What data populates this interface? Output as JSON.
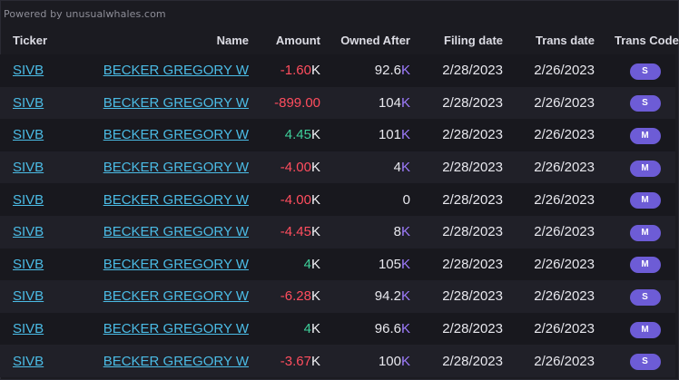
{
  "powered_by": "Powered by unusualwhales.com",
  "columns": {
    "ticker": "Ticker",
    "name": "Name",
    "amount": "Amount",
    "owned_after": "Owned After",
    "filing_date": "Filing date",
    "trans_date": "Trans date",
    "trans_code": "Trans Code"
  },
  "colors": {
    "link": "#4bbce6",
    "negative": "#ff4d5e",
    "positive": "#3ecf9a",
    "owned_suffix": "#9f7cff",
    "badge": "#6d5cd6",
    "background": "#1b1b21"
  },
  "rows": [
    {
      "ticker": "SIVB",
      "name": "BECKER GREGORY W",
      "amount": "-1.60",
      "amount_suffix": "K",
      "amount_sign": "neg",
      "owned": "92.6",
      "owned_suffix": "K",
      "filing": "2/28/2023",
      "trans": "2/26/2023",
      "code": "S"
    },
    {
      "ticker": "SIVB",
      "name": "BECKER GREGORY W",
      "amount": "-899.00",
      "amount_suffix": "",
      "amount_sign": "neg",
      "owned": "104",
      "owned_suffix": "K",
      "filing": "2/28/2023",
      "trans": "2/26/2023",
      "code": "S"
    },
    {
      "ticker": "SIVB",
      "name": "BECKER GREGORY W",
      "amount": "4.45",
      "amount_suffix": "K",
      "amount_sign": "pos",
      "owned": "101",
      "owned_suffix": "K",
      "filing": "2/28/2023",
      "trans": "2/26/2023",
      "code": "M"
    },
    {
      "ticker": "SIVB",
      "name": "BECKER GREGORY W",
      "amount": "-4.00",
      "amount_suffix": "K",
      "amount_sign": "neg",
      "owned": "4",
      "owned_suffix": "K",
      "filing": "2/28/2023",
      "trans": "2/26/2023",
      "code": "M"
    },
    {
      "ticker": "SIVB",
      "name": "BECKER GREGORY W",
      "amount": "-4.00",
      "amount_suffix": "K",
      "amount_sign": "neg",
      "owned": "0",
      "owned_suffix": "",
      "filing": "2/28/2023",
      "trans": "2/26/2023",
      "code": "M"
    },
    {
      "ticker": "SIVB",
      "name": "BECKER GREGORY W",
      "amount": "-4.45",
      "amount_suffix": "K",
      "amount_sign": "neg",
      "owned": "8",
      "owned_suffix": "K",
      "filing": "2/28/2023",
      "trans": "2/26/2023",
      "code": "M"
    },
    {
      "ticker": "SIVB",
      "name": "BECKER GREGORY W",
      "amount": "4",
      "amount_suffix": "K",
      "amount_sign": "pos",
      "owned": "105",
      "owned_suffix": "K",
      "filing": "2/28/2023",
      "trans": "2/26/2023",
      "code": "M"
    },
    {
      "ticker": "SIVB",
      "name": "BECKER GREGORY W",
      "amount": "-6.28",
      "amount_suffix": "K",
      "amount_sign": "neg",
      "owned": "94.2",
      "owned_suffix": "K",
      "filing": "2/28/2023",
      "trans": "2/26/2023",
      "code": "S"
    },
    {
      "ticker": "SIVB",
      "name": "BECKER GREGORY W",
      "amount": "4",
      "amount_suffix": "K",
      "amount_sign": "pos",
      "owned": "96.6",
      "owned_suffix": "K",
      "filing": "2/28/2023",
      "trans": "2/26/2023",
      "code": "M"
    },
    {
      "ticker": "SIVB",
      "name": "BECKER GREGORY W",
      "amount": "-3.67",
      "amount_suffix": "K",
      "amount_sign": "neg",
      "owned": "100",
      "owned_suffix": "K",
      "filing": "2/28/2023",
      "trans": "2/26/2023",
      "code": "S"
    }
  ]
}
